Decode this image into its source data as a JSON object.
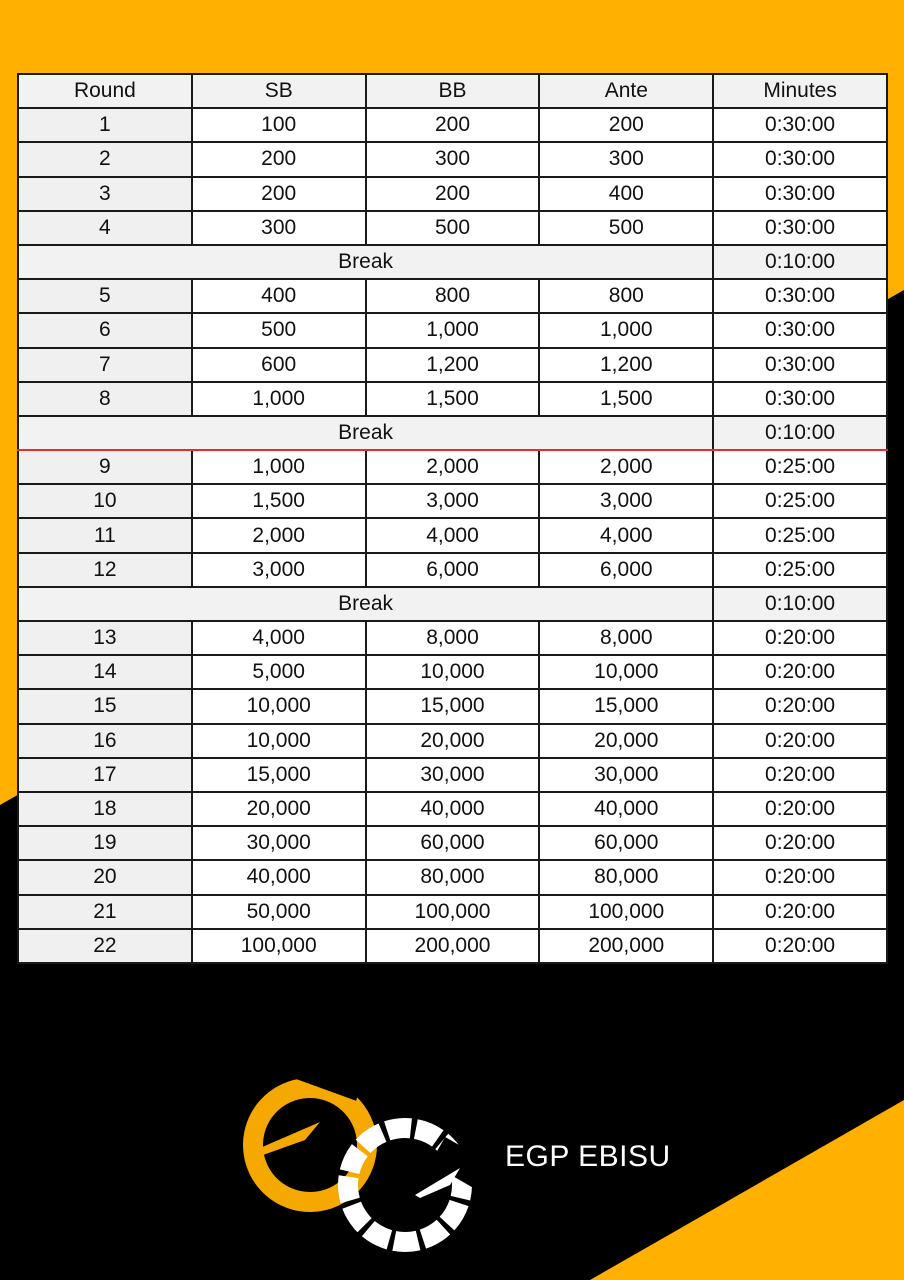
{
  "colors": {
    "yellow": "#FFB000",
    "black": "#000000",
    "accent_line": "#e0302a"
  },
  "table": {
    "headers": [
      "Round",
      "SB",
      "BB",
      "Ante",
      "Minutes"
    ],
    "rows": [
      {
        "type": "level",
        "cells": [
          "1",
          "100",
          "200",
          "200",
          "0:30:00"
        ]
      },
      {
        "type": "level",
        "cells": [
          "2",
          "200",
          "300",
          "300",
          "0:30:00"
        ]
      },
      {
        "type": "level",
        "cells": [
          "3",
          "200",
          "200",
          "400",
          "0:30:00"
        ]
      },
      {
        "type": "level",
        "cells": [
          "4",
          "300",
          "500",
          "500",
          "0:30:00"
        ]
      },
      {
        "type": "break",
        "label": "Break",
        "minutes": "0:10:00"
      },
      {
        "type": "level",
        "cells": [
          "5",
          "400",
          "800",
          "800",
          "0:30:00"
        ]
      },
      {
        "type": "level",
        "cells": [
          "6",
          "500",
          "1,000",
          "1,000",
          "0:30:00"
        ]
      },
      {
        "type": "level",
        "cells": [
          "7",
          "600",
          "1,200",
          "1,200",
          "0:30:00"
        ]
      },
      {
        "type": "level",
        "cells": [
          "8",
          "1,000",
          "1,500",
          "1,500",
          "0:30:00"
        ]
      },
      {
        "type": "break",
        "label": "Break",
        "minutes": "0:10:00",
        "red_underline": true
      },
      {
        "type": "level",
        "cells": [
          "9",
          "1,000",
          "2,000",
          "2,000",
          "0:25:00"
        ]
      },
      {
        "type": "level",
        "cells": [
          "10",
          "1,500",
          "3,000",
          "3,000",
          "0:25:00"
        ]
      },
      {
        "type": "level",
        "cells": [
          "11",
          "2,000",
          "4,000",
          "4,000",
          "0:25:00"
        ]
      },
      {
        "type": "level",
        "cells": [
          "12",
          "3,000",
          "6,000",
          "6,000",
          "0:25:00"
        ]
      },
      {
        "type": "break",
        "label": "Break",
        "minutes": "0:10:00"
      },
      {
        "type": "level",
        "cells": [
          "13",
          "4,000",
          "8,000",
          "8,000",
          "0:20:00"
        ]
      },
      {
        "type": "level",
        "cells": [
          "14",
          "5,000",
          "10,000",
          "10,000",
          "0:20:00"
        ]
      },
      {
        "type": "level",
        "cells": [
          "15",
          "10,000",
          "15,000",
          "15,000",
          "0:20:00"
        ]
      },
      {
        "type": "level",
        "cells": [
          "16",
          "10,000",
          "20,000",
          "20,000",
          "0:20:00"
        ]
      },
      {
        "type": "level",
        "cells": [
          "17",
          "15,000",
          "30,000",
          "30,000",
          "0:20:00"
        ]
      },
      {
        "type": "level",
        "cells": [
          "18",
          "20,000",
          "40,000",
          "40,000",
          "0:20:00"
        ]
      },
      {
        "type": "level",
        "cells": [
          "19",
          "30,000",
          "60,000",
          "60,000",
          "0:20:00"
        ]
      },
      {
        "type": "level",
        "cells": [
          "20",
          "40,000",
          "80,000",
          "80,000",
          "0:20:00"
        ]
      },
      {
        "type": "level",
        "cells": [
          "21",
          "50,000",
          "100,000",
          "100,000",
          "0:20:00"
        ]
      },
      {
        "type": "level",
        "cells": [
          "22",
          "100,000",
          "200,000",
          "200,000",
          "0:20:00"
        ]
      }
    ]
  },
  "brand": {
    "name": "EGP EBISU",
    "logo_text": "EG"
  }
}
